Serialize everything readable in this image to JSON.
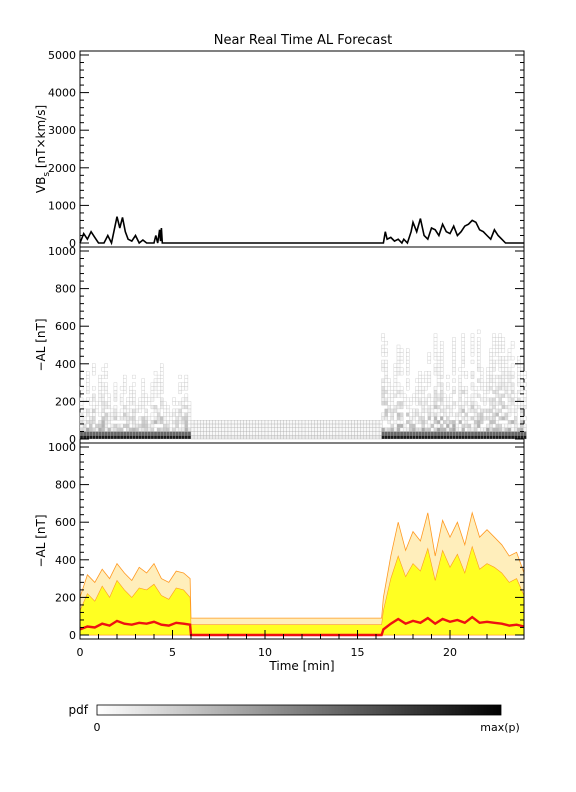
{
  "title": "Near Real Time AL Forecast",
  "colors": {
    "vbs_line": "#000000",
    "median_line": "#ee1111",
    "band_fill": "#ffff22",
    "band_outer": "#ffeebb",
    "band_edge": "#ff9922",
    "grid_box": "#999999"
  },
  "colorbar": {
    "label": "pdf",
    "min_label": "0",
    "max_label": "max(p)"
  },
  "chart_data": [
    {
      "type": "line",
      "panel": "vbs",
      "ylabel_main": "VB",
      "ylabel_sub": "s",
      "ylabel_unit": " [nT×km/s]",
      "ylim": [
        0,
        5000
      ],
      "yticks": [
        0,
        1000,
        2000,
        3000,
        4000,
        5000
      ],
      "xlim": [
        0,
        24
      ],
      "x": [
        0.0,
        0.2,
        0.4,
        0.6,
        0.8,
        1.0,
        1.3,
        1.5,
        1.7,
        2.0,
        2.15,
        2.3,
        2.45,
        2.6,
        2.8,
        3.0,
        3.2,
        3.4,
        3.6,
        3.8,
        4.0,
        4.1,
        4.2,
        4.3,
        4.35,
        4.4,
        4.45,
        4.6,
        5.0,
        10.0,
        16.0,
        16.4,
        16.5,
        16.6,
        16.8,
        17.0,
        17.2,
        17.4,
        17.5,
        17.7,
        17.9,
        18.0,
        18.2,
        18.4,
        18.6,
        18.8,
        19.0,
        19.2,
        19.4,
        19.6,
        19.8,
        20.0,
        20.2,
        20.4,
        20.6,
        20.8,
        21.0,
        21.2,
        21.4,
        21.6,
        21.8,
        22.0,
        22.2,
        22.4,
        22.6,
        22.8,
        23.0,
        23.5,
        24.0
      ],
      "values": [
        0,
        250,
        100,
        300,
        150,
        0,
        0,
        200,
        0,
        700,
        400,
        680,
        300,
        100,
        50,
        200,
        0,
        80,
        0,
        0,
        0,
        200,
        0,
        350,
        50,
        400,
        0,
        0,
        0,
        0,
        0,
        0,
        300,
        100,
        150,
        50,
        100,
        0,
        100,
        0,
        300,
        550,
        300,
        650,
        200,
        100,
        400,
        350,
        200,
        500,
        300,
        250,
        450,
        200,
        300,
        450,
        500,
        600,
        550,
        350,
        300,
        200,
        100,
        350,
        200,
        100,
        0,
        0,
        0
      ]
    },
    {
      "type": "heatmap",
      "panel": "pdf",
      "ylabel": "−AL [nT]",
      "ylim": [
        0,
        1000
      ],
      "yticks": [
        0,
        200,
        400,
        600,
        800,
        1000
      ],
      "xlim": [
        0,
        24
      ],
      "segments": [
        {
          "x_start": 0.0,
          "x_end": 6.0,
          "active": true,
          "max_al": 400
        },
        {
          "x_start": 6.0,
          "x_end": 16.3,
          "active": false,
          "max_al": 90
        },
        {
          "x_start": 16.3,
          "x_end": 24.0,
          "active": true,
          "max_al": 580
        }
      ]
    },
    {
      "type": "area",
      "panel": "forecast",
      "ylabel": "−AL [nT]",
      "xlabel": "Time [min]",
      "ylim": [
        0,
        1000
      ],
      "yticks": [
        0,
        200,
        400,
        600,
        800,
        1000
      ],
      "xlim": [
        0,
        24
      ],
      "xticks": [
        0,
        5,
        10,
        15,
        20
      ],
      "x": [
        0.0,
        0.4,
        0.8,
        1.2,
        1.6,
        2.0,
        2.4,
        2.8,
        3.2,
        3.6,
        4.0,
        4.4,
        4.8,
        5.2,
        5.6,
        5.95,
        6.0,
        10.0,
        16.3,
        16.4,
        16.8,
        17.2,
        17.6,
        18.0,
        18.4,
        18.8,
        19.2,
        19.6,
        20.0,
        20.4,
        20.8,
        21.2,
        21.6,
        22.0,
        22.4,
        22.8,
        23.2,
        23.6,
        24.0
      ],
      "series": [
        {
          "name": "",
          "role": "max",
          "values": [
            200,
            320,
            280,
            350,
            300,
            380,
            330,
            290,
            360,
            330,
            380,
            300,
            280,
            340,
            330,
            300,
            90,
            90,
            90,
            200,
            420,
            600,
            450,
            550,
            500,
            650,
            420,
            610,
            520,
            600,
            480,
            650,
            520,
            560,
            520,
            480,
            420,
            440,
            330
          ]
        },
        {
          "name": "",
          "role": "upper",
          "values": [
            130,
            220,
            180,
            260,
            200,
            290,
            240,
            200,
            250,
            240,
            270,
            210,
            190,
            250,
            240,
            200,
            55,
            55,
            55,
            130,
            300,
            420,
            310,
            380,
            340,
            460,
            290,
            450,
            360,
            430,
            330,
            470,
            350,
            380,
            360,
            330,
            280,
            300,
            210
          ]
        },
        {
          "name": "",
          "role": "median",
          "values": [
            30,
            45,
            40,
            60,
            50,
            75,
            60,
            55,
            65,
            60,
            70,
            55,
            50,
            65,
            60,
            55,
            0,
            0,
            0,
            30,
            60,
            85,
            60,
            75,
            65,
            90,
            60,
            85,
            70,
            80,
            65,
            95,
            65,
            70,
            65,
            60,
            50,
            55,
            45
          ]
        }
      ]
    }
  ]
}
